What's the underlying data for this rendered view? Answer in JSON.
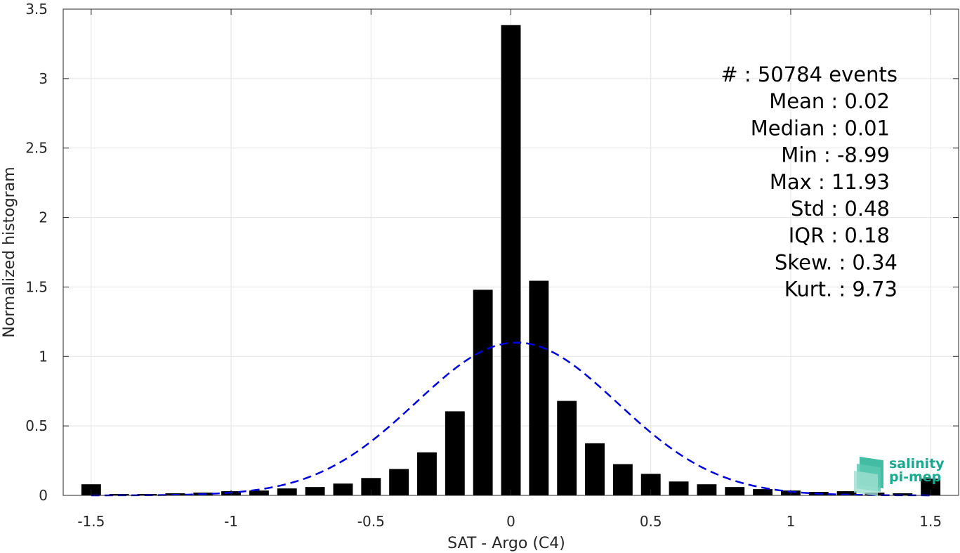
{
  "chart_data": {
    "type": "bar",
    "xlabel": "SAT - Argo (C4)",
    "ylabel": "Normalized histogram",
    "xlim": [
      -1.6,
      1.6
    ],
    "ylim": [
      0,
      3.5
    ],
    "xticks": [
      -1.5,
      -1,
      -0.5,
      0,
      0.5,
      1,
      1.5
    ],
    "xtick_labels": [
      "-1.5",
      "-1",
      "-0.5",
      "0",
      "0.5",
      "1",
      "1.5"
    ],
    "yticks": [
      0,
      0.5,
      1,
      1.5,
      2,
      2.5,
      3,
      3.5
    ],
    "ytick_labels": [
      "0",
      "0.5",
      "1",
      "1.5",
      "2",
      "2.5",
      "3",
      "3.5"
    ],
    "grid": true,
    "bar_color": "#000000",
    "bins": [
      -1.5,
      -1.4,
      -1.3,
      -1.2,
      -1.1,
      -1.0,
      -0.9,
      -0.8,
      -0.7,
      -0.6,
      -0.5,
      -0.4,
      -0.3,
      -0.2,
      -0.1,
      0.0,
      0.1,
      0.2,
      0.3,
      0.4,
      0.5,
      0.6,
      0.7,
      0.8,
      0.9,
      1.0,
      1.1,
      1.2,
      1.3,
      1.4,
      1.5
    ],
    "values": [
      0.08,
      0.01,
      0.01,
      0.015,
      0.02,
      0.03,
      0.035,
      0.05,
      0.06,
      0.085,
      0.125,
      0.19,
      0.31,
      0.605,
      1.48,
      3.385,
      1.545,
      0.68,
      0.375,
      0.225,
      0.155,
      0.1,
      0.08,
      0.06,
      0.045,
      0.035,
      0.025,
      0.03,
      0.02,
      0.015,
      0.12
    ],
    "bin_width": 0.07,
    "fit": {
      "type": "gaussian",
      "mean": 0.02,
      "std": 0.36,
      "peak": 1.1,
      "color": "#0000dd",
      "style": "dashed",
      "x_range": [
        -1.5,
        1.5
      ]
    },
    "annotations": [
      {
        "text": "#  : 50784 events"
      },
      {
        "text": "Mean : 0.02"
      },
      {
        "text": "Median : 0.01"
      },
      {
        "text": "Min : -8.99"
      },
      {
        "text": "Max : 11.93"
      },
      {
        "text": "Std : 0.48"
      },
      {
        "text": "IQR : 0.18"
      },
      {
        "text": "Skew. : 0.34"
      },
      {
        "text": "Kurt. : 9.73"
      }
    ]
  },
  "logo": {
    "line1": "salinity",
    "line2": "pi-mep",
    "color": "#1aa88e"
  }
}
